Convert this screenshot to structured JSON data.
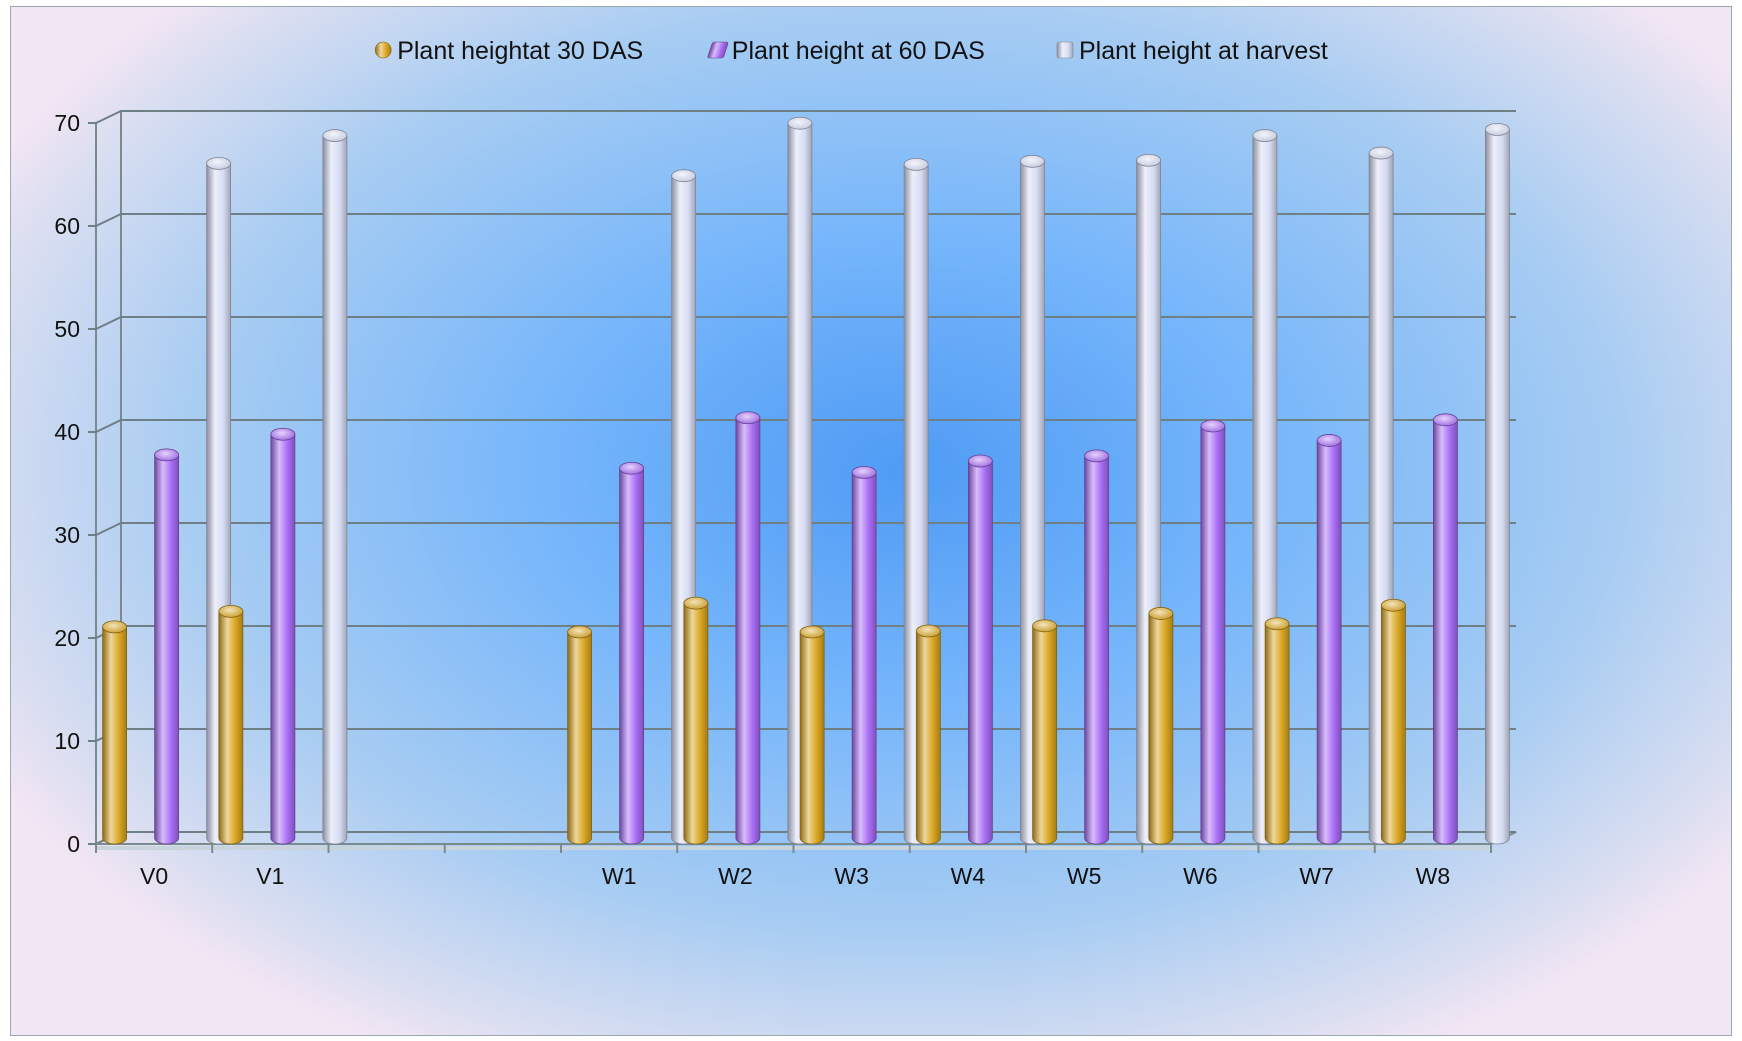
{
  "chart_data": {
    "type": "bar",
    "title": "",
    "xlabel": "",
    "ylabel": "",
    "categories": [
      "V0",
      "V1",
      "",
      "",
      "W1",
      "W2",
      "W3",
      "W4",
      "W5",
      "W6",
      "W7",
      "W8"
    ],
    "series": [
      {
        "name": "Plant heightat 30 DAS",
        "color": "#d9a520",
        "values": [
          20.5,
          22,
          null,
          null,
          20,
          22.8,
          20,
          20.1,
          20.6,
          21.8,
          20.8,
          22.6
        ]
      },
      {
        "name": "Plant height at 60 DAS",
        "color": "#a86cf5",
        "values": [
          37.2,
          39.2,
          null,
          null,
          35.9,
          40.8,
          35.5,
          36.6,
          37.1,
          40,
          38.6,
          40.6
        ]
      },
      {
        "name": "Plant height at harvest",
        "color": "#d6dcf3",
        "values": [
          65.5,
          68.2,
          null,
          null,
          64.3,
          69.4,
          65.4,
          65.7,
          65.8,
          68.2,
          66.5,
          68.8
        ]
      }
    ],
    "ylim": [
      0,
      70
    ],
    "yticks": [
      0,
      10,
      20,
      30,
      40,
      50,
      60,
      70
    ],
    "grid": true,
    "legend": "top",
    "style": "3d-cylinder"
  }
}
